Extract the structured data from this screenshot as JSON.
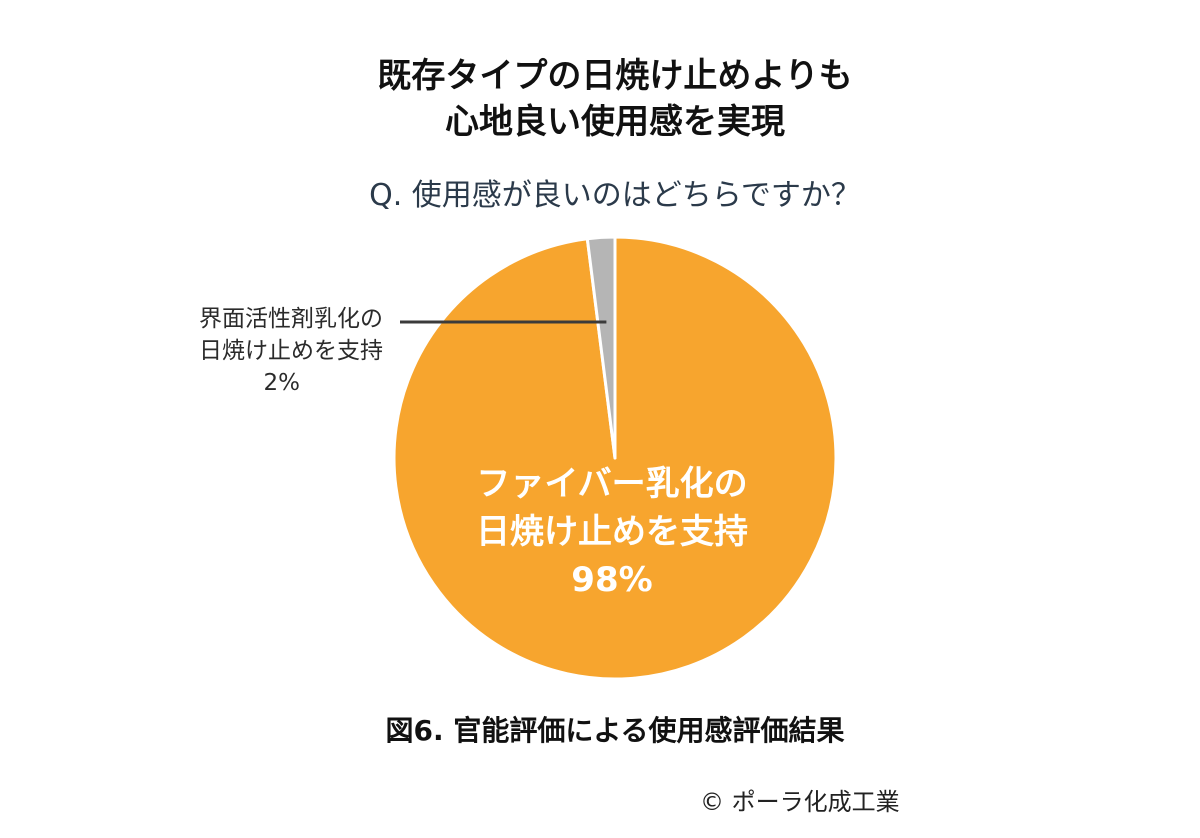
{
  "title_lines": [
    "既存タイプの日焼け止めよりも",
    "心地良い使用感を実現"
  ],
  "question": "Q. 使用感が良いのはどちらですか？",
  "caption": "図6. 官能評価による使用感評価結果",
  "copyright": "© ポーラ化成工業",
  "chart_data": {
    "type": "pie",
    "title": "既存タイプの日焼け止めよりも 心地良い使用感を実現",
    "subtitle": "Q. 使用感が良いのはどちらですか？",
    "unit": "%",
    "slices": [
      {
        "label_lines": [
          "ファイバー乳化の",
          "日焼け止めを支持"
        ],
        "value": 98,
        "value_label": "98%",
        "color": "#F7A52E"
      },
      {
        "label_lines": [
          "界面活性剤乳化の",
          "日焼け止めを支持"
        ],
        "value": 2,
        "value_label": "2%",
        "color": "#B5B5B5"
      }
    ],
    "start_angle": "12 o'clock",
    "direction": "clockwise",
    "slice_border_color": "#ffffff",
    "leader_line_color": "#3b3b3b"
  }
}
